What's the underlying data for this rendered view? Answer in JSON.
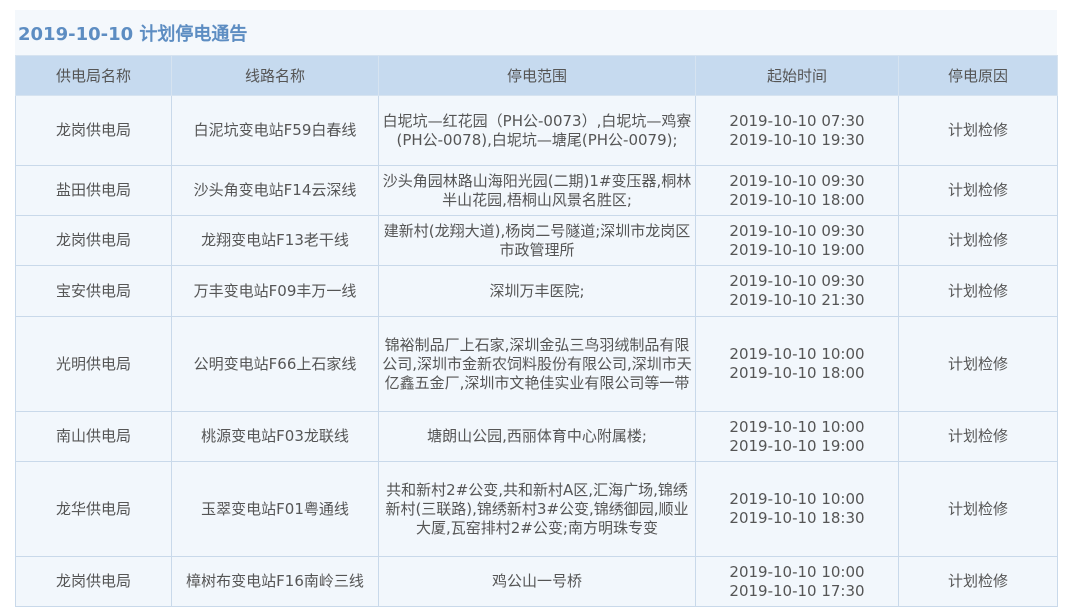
{
  "title": "2019-10-10  计划停电通告",
  "columns": [
    "供电局名称",
    "线路名称",
    "停电范围",
    "起始时间",
    "停电原因"
  ],
  "rows": [
    {
      "bureau": "龙岗供电局",
      "line": "白泥坑变电站F59白春线",
      "range": "白坭坑—红花园（PH公-0073）,白坭坑—鸡寮(PH公-0078),白坭坑—塘尾(PH公-0079);",
      "start": "2019-10-10 07:30",
      "end": "2019-10-10 19:30",
      "reason": "计划检修"
    },
    {
      "bureau": "盐田供电局",
      "line": "沙头角变电站F14云深线",
      "range": "沙头角园林路山海阳光园(二期)1#变压器,桐林半山花园,梧桐山风景名胜区;",
      "start": "2019-10-10 09:30",
      "end": "2019-10-10 18:00",
      "reason": "计划检修"
    },
    {
      "bureau": "龙岗供电局",
      "line": "龙翔变电站F13老干线",
      "range": "建新村(龙翔大道),杨岗二号隧道;深圳市龙岗区市政管理所",
      "start": "2019-10-10 09:30",
      "end": "2019-10-10 19:00",
      "reason": "计划检修"
    },
    {
      "bureau": "宝安供电局",
      "line": "万丰变电站F09丰万一线",
      "range": "深圳万丰医院;",
      "start": "2019-10-10 09:30",
      "end": "2019-10-10 21:30",
      "reason": "计划检修"
    },
    {
      "bureau": "光明供电局",
      "line": "公明变电站F66上石家线",
      "range": "锦裕制品厂上石家,深圳金弘三鸟羽绒制品有限公司,深圳市金新农饲料股份有限公司,深圳市天亿鑫五金厂,深圳市文艳佳实业有限公司等一带",
      "start": "2019-10-10 10:00",
      "end": "2019-10-10 18:00",
      "reason": "计划检修"
    },
    {
      "bureau": "南山供电局",
      "line": "桃源变电站F03龙联线",
      "range": "塘朗山公园,西丽体育中心附属楼;",
      "start": "2019-10-10 10:00",
      "end": "2019-10-10 19:00",
      "reason": "计划检修"
    },
    {
      "bureau": "龙华供电局",
      "line": "玉翠变电站F01粤通线",
      "range": "共和新村2#公变,共和新村A区,汇海广场,锦绣新村(三联路),锦绣新村3#公变,锦绣御园,顺业大厦,瓦窑排村2#公变;南方明珠专变",
      "start": "2019-10-10 10:00",
      "end": "2019-10-10 18:30",
      "reason": "计划检修"
    },
    {
      "bureau": "龙岗供电局",
      "line": "樟树布变电站F16南岭三线",
      "range": "鸡公山一号桥",
      "start": "2019-10-10 10:00",
      "end": "2019-10-10 17:30",
      "reason": "计划检修"
    }
  ]
}
